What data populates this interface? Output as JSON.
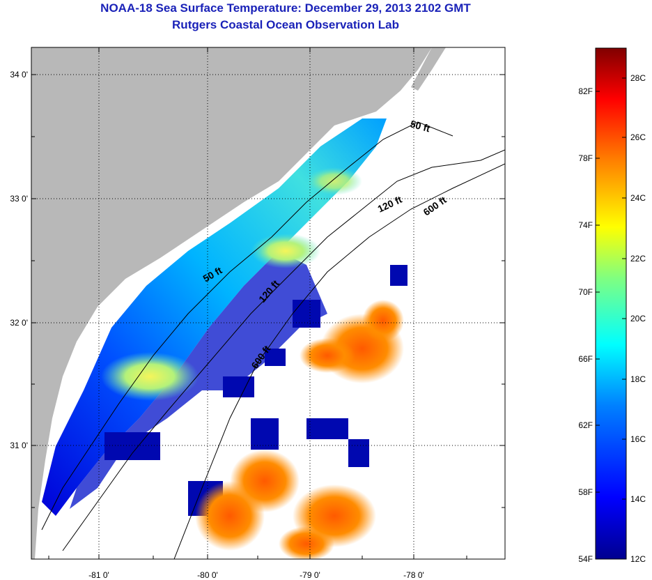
{
  "title_line1": "NOAA-18 Sea Surface Temperature:  December 29, 2013 2102 GMT",
  "title_line2": "Rutgers Coastal Ocean Observation Lab",
  "map": {
    "lat_ticks": [
      "34 0'",
      "33 0'",
      "32 0'",
      "31 0'"
    ],
    "lon_ticks": [
      "-81 0'",
      "-80 0'",
      "-79 0'",
      "-78 0'"
    ],
    "isobaths": [
      "50 ft",
      "120 ft",
      "600 ft"
    ],
    "isobath_labels_north": [
      "50 ft",
      "120 ft",
      "600 ft"
    ],
    "isobath_labels_south": [
      "50 ft",
      "120 ft",
      "600 ft"
    ],
    "colors": {
      "land": "#b8b8b8",
      "ocean_nodata": "#ffffff"
    }
  },
  "colorbar": {
    "fahrenheit_labels": [
      "82F",
      "78F",
      "74F",
      "70F",
      "66F",
      "62F",
      "58F",
      "54F"
    ],
    "celsius_labels": [
      "28C",
      "26C",
      "24C",
      "22C",
      "20C",
      "18C",
      "16C",
      "14C",
      "12C"
    ],
    "colormap": [
      "#00008f",
      "#0000ff",
      "#0080ff",
      "#00ffff",
      "#80ff80",
      "#ffff00",
      "#ff8000",
      "#ff0000",
      "#800000"
    ]
  }
}
